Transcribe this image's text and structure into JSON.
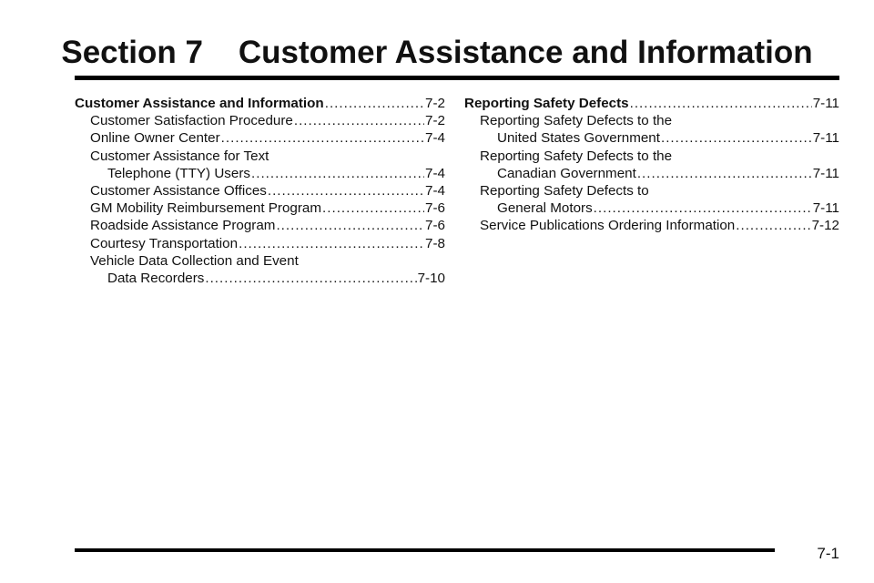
{
  "header": {
    "title": "Section 7    Customer Assistance and Information"
  },
  "toc": {
    "left": [
      {
        "label": "Customer Assistance and Information",
        "page": "7-2",
        "style": "head"
      },
      {
        "label": "Customer Satisfaction Procedure",
        "page": "7-2",
        "style": "indent1"
      },
      {
        "label": "Online Owner Center",
        "page": "7-4",
        "style": "indent1"
      },
      {
        "label": "Customer Assistance for Text",
        "page": "",
        "style": "indent1"
      },
      {
        "label": "Telephone (TTY) Users",
        "page": "7-4",
        "style": "indent2"
      },
      {
        "label": "Customer Assistance Offices",
        "page": "7-4",
        "style": "indent1"
      },
      {
        "label": "GM Mobility Reimbursement Program",
        "page": "7-6",
        "style": "indent1"
      },
      {
        "label": "Roadside Assistance Program",
        "page": "7-6",
        "style": "indent1"
      },
      {
        "label": "Courtesy Transportation",
        "page": "7-8",
        "style": "indent1"
      },
      {
        "label": "Vehicle Data Collection and Event",
        "page": "",
        "style": "indent1"
      },
      {
        "label": "Data Recorders",
        "page": "7-10",
        "style": "indent2"
      }
    ],
    "right": [
      {
        "label": "Reporting Safety Defects",
        "page": "7-11",
        "style": "head"
      },
      {
        "label": "Reporting Safety Defects to the",
        "page": "",
        "style": "indent1"
      },
      {
        "label": "United States Government",
        "page": "7-11",
        "style": "indent2"
      },
      {
        "label": "Reporting Safety Defects to the",
        "page": "",
        "style": "indent1"
      },
      {
        "label": "Canadian Government",
        "page": "7-11",
        "style": "indent2"
      },
      {
        "label": "Reporting Safety Defects to",
        "page": "",
        "style": "indent1"
      },
      {
        "label": "General Motors",
        "page": "7-11",
        "style": "indent2"
      },
      {
        "label": "Service Publications Ordering Information",
        "page": "7-12",
        "style": "indent1"
      }
    ]
  },
  "footer": {
    "page_number": "7-1"
  }
}
